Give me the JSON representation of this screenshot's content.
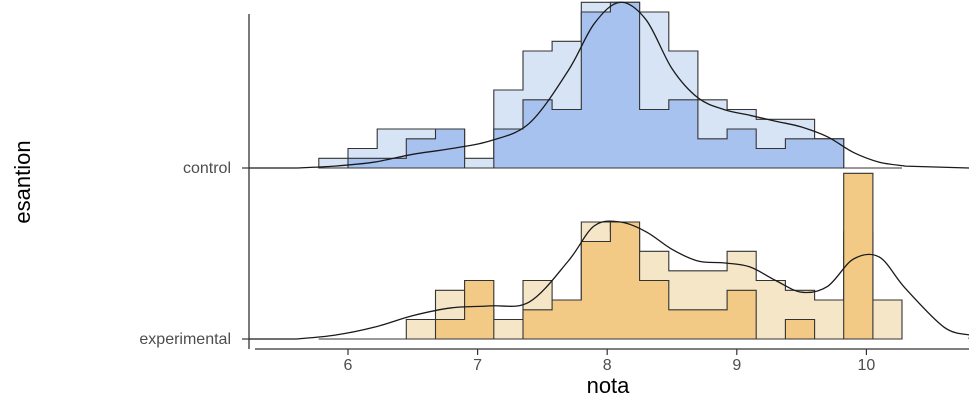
{
  "chart_data": {
    "type": "histogram-ridgeline",
    "title": "",
    "xlabel": "nota",
    "ylabel": "esantion",
    "xlim": [
      5.3,
      10.8
    ],
    "x_ticks": [
      "6",
      "7",
      "8",
      "9",
      "10"
    ],
    "grid": false,
    "legend": "none",
    "bin_edges": [
      5.775,
      6.0,
      6.225,
      6.45,
      6.675,
      6.9,
      7.125,
      7.35,
      7.575,
      7.8,
      8.025,
      8.25,
      8.475,
      8.7,
      8.925,
      9.15,
      9.375,
      9.6,
      9.825,
      10.05,
      10.275
    ],
    "series": [
      {
        "name": "control",
        "fill_light": "#d7e4f5",
        "fill_dark": "#a8c2f0",
        "counts_light": [
          0.5,
          1,
          2,
          2,
          2,
          0.5,
          4,
          6,
          6.5,
          8.5,
          8.5,
          8,
          6,
          3.5,
          3,
          2.5,
          2.5,
          1.5,
          0,
          0
        ],
        "counts_dark": [
          0,
          0.5,
          0.5,
          1.5,
          2,
          0,
          2,
          3.5,
          3,
          8,
          8.5,
          3,
          3.5,
          1.5,
          2,
          1,
          1.5,
          1.5,
          0,
          0
        ],
        "density_x": [
          5.6,
          5.9,
          6.2,
          6.5,
          6.8,
          7.1,
          7.4,
          7.7,
          7.9,
          8.1,
          8.3,
          8.5,
          8.7,
          8.9,
          9.1,
          9.3,
          9.5,
          9.7,
          9.9,
          10.1,
          10.3
        ],
        "density_y": [
          0.0,
          0.1,
          0.3,
          0.7,
          1.0,
          1.4,
          2.3,
          5.0,
          7.4,
          8.5,
          7.6,
          5.1,
          3.6,
          3.0,
          2.7,
          2.4,
          2.1,
          1.6,
          0.8,
          0.3,
          0.1
        ]
      },
      {
        "name": "experimental",
        "fill_light": "#f5e6c8",
        "fill_dark": "#f2ca86",
        "counts_light": [
          0,
          0,
          0,
          1,
          2.5,
          1.5,
          1,
          3,
          2,
          6,
          5.5,
          4.5,
          3.5,
          3.5,
          4.5,
          3,
          2.5,
          2,
          5.5,
          2
        ],
        "counts_dark": [
          0,
          0,
          0,
          0,
          1,
          3,
          0,
          1.5,
          2,
          5,
          6,
          3,
          1.5,
          1.5,
          2.5,
          0,
          1,
          0,
          8.5,
          0
        ],
        "density_x": [
          5.6,
          5.9,
          6.2,
          6.5,
          6.8,
          7.1,
          7.4,
          7.7,
          7.9,
          8.1,
          8.3,
          8.5,
          8.7,
          8.9,
          9.1,
          9.3,
          9.5,
          9.7,
          9.9,
          10.1,
          10.3,
          10.6,
          10.8
        ],
        "density_y": [
          0.0,
          0.2,
          0.6,
          1.2,
          1.6,
          1.7,
          1.9,
          4.0,
          5.8,
          6.0,
          5.5,
          4.6,
          4.0,
          3.9,
          3.7,
          3.0,
          2.4,
          2.7,
          4.1,
          4.2,
          2.6,
          0.6,
          0.2
        ]
      }
    ]
  }
}
